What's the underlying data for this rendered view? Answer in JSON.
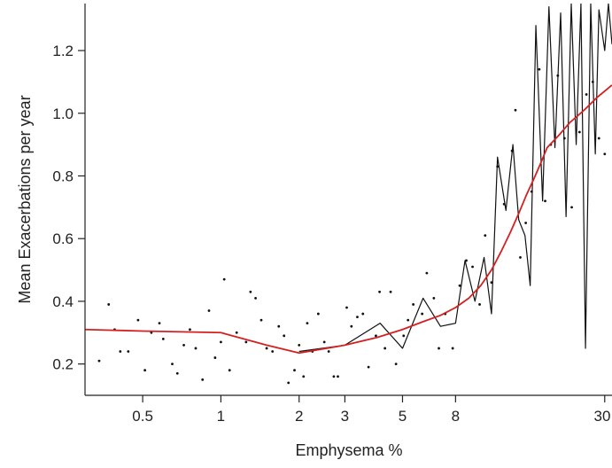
{
  "chart_data": {
    "type": "scatter",
    "title": "",
    "xlabel": "Emphysema %",
    "ylabel": "Mean Exacerbations per year",
    "x_scale": "log",
    "xlim": [
      0.3,
      32
    ],
    "ylim": [
      0.1,
      1.35
    ],
    "grid": false,
    "legend": "none",
    "x_ticks": [
      {
        "value": 0.5,
        "label": "0.5"
      },
      {
        "value": 1,
        "label": "1"
      },
      {
        "value": 2,
        "label": "2"
      },
      {
        "value": 3,
        "label": "3"
      },
      {
        "value": 5,
        "label": "5"
      },
      {
        "value": 8,
        "label": "8"
      },
      {
        "value": 30,
        "label": "30"
      }
    ],
    "y_ticks": [
      {
        "value": 0.2,
        "label": "0.2"
      },
      {
        "value": 0.4,
        "label": "0.4"
      },
      {
        "value": 0.6,
        "label": "0.6"
      },
      {
        "value": 0.8,
        "label": "0.8"
      },
      {
        "value": 1.0,
        "label": "1.0"
      },
      {
        "value": 1.2,
        "label": "1.2"
      }
    ],
    "series": [
      {
        "kind": "points",
        "color": "#111111",
        "points": [
          [
            0.34,
            0.21
          ],
          [
            0.37,
            0.39
          ],
          [
            0.39,
            0.31
          ],
          [
            0.41,
            0.24
          ],
          [
            0.44,
            0.24
          ],
          [
            0.48,
            0.34
          ],
          [
            0.51,
            0.18
          ],
          [
            0.54,
            0.3
          ],
          [
            0.58,
            0.33
          ],
          [
            0.6,
            0.28
          ],
          [
            0.65,
            0.2
          ],
          [
            0.68,
            0.17
          ],
          [
            0.72,
            0.26
          ],
          [
            0.76,
            0.31
          ],
          [
            0.8,
            0.25
          ],
          [
            0.85,
            0.15
          ],
          [
            0.9,
            0.37
          ],
          [
            0.95,
            0.22
          ],
          [
            1.0,
            0.27
          ],
          [
            1.03,
            0.47
          ],
          [
            1.08,
            0.18
          ],
          [
            1.15,
            0.3
          ],
          [
            1.25,
            0.27
          ],
          [
            1.3,
            0.43
          ],
          [
            1.36,
            0.41
          ],
          [
            1.43,
            0.34
          ],
          [
            1.5,
            0.25
          ],
          [
            1.58,
            0.24
          ],
          [
            1.67,
            0.32
          ],
          [
            1.75,
            0.29
          ],
          [
            1.82,
            0.14
          ],
          [
            1.92,
            0.18
          ],
          [
            2.0,
            0.26
          ],
          [
            2.08,
            0.16
          ],
          [
            2.15,
            0.33
          ],
          [
            2.25,
            0.24
          ],
          [
            2.37,
            0.36
          ],
          [
            2.5,
            0.27
          ],
          [
            2.6,
            0.24
          ],
          [
            2.72,
            0.16
          ],
          [
            2.82,
            0.16
          ],
          [
            3.05,
            0.38
          ],
          [
            3.18,
            0.32
          ],
          [
            3.35,
            0.35
          ],
          [
            3.52,
            0.36
          ],
          [
            3.7,
            0.19
          ],
          [
            3.95,
            0.29
          ],
          [
            4.08,
            0.43
          ],
          [
            4.28,
            0.25
          ],
          [
            4.5,
            0.43
          ],
          [
            4.72,
            0.2
          ],
          [
            5.05,
            0.29
          ],
          [
            5.25,
            0.34
          ],
          [
            5.5,
            0.39
          ],
          [
            5.95,
            0.36
          ],
          [
            6.2,
            0.49
          ],
          [
            6.6,
            0.41
          ],
          [
            6.9,
            0.25
          ],
          [
            7.3,
            0.36
          ],
          [
            7.8,
            0.25
          ],
          [
            8.3,
            0.45
          ],
          [
            8.8,
            0.53
          ],
          [
            9.3,
            0.51
          ],
          [
            9.9,
            0.39
          ],
          [
            10.4,
            0.61
          ],
          [
            11.0,
            0.46
          ],
          [
            11.6,
            0.83
          ],
          [
            12.3,
            0.71
          ],
          [
            13.2,
            0.88
          ],
          [
            13.6,
            1.01
          ],
          [
            14.2,
            0.54
          ],
          [
            14.9,
            0.65
          ],
          [
            15.7,
            0.75
          ],
          [
            16.8,
            1.14
          ],
          [
            17.7,
            0.72
          ],
          [
            18.6,
            0.9
          ],
          [
            19.8,
            1.12
          ],
          [
            21.0,
            0.92
          ],
          [
            22.4,
            0.7
          ],
          [
            24.0,
            0.94
          ],
          [
            25.5,
            1.06
          ],
          [
            27.0,
            1.1
          ],
          [
            28.5,
            0.92
          ],
          [
            30.0,
            0.87
          ]
        ]
      },
      {
        "kind": "line",
        "color": "#111111",
        "points": [
          [
            2.0,
            0.24
          ],
          [
            3.0,
            0.26
          ],
          [
            4.1,
            0.33
          ],
          [
            5.0,
            0.25
          ],
          [
            6.0,
            0.41
          ],
          [
            7.0,
            0.32
          ],
          [
            8.0,
            0.33
          ],
          [
            8.7,
            0.53
          ],
          [
            9.5,
            0.4
          ],
          [
            10.3,
            0.54
          ],
          [
            11.0,
            0.36
          ],
          [
            11.6,
            0.86
          ],
          [
            12.5,
            0.69
          ],
          [
            13.3,
            0.9
          ],
          [
            14.0,
            0.66
          ],
          [
            14.8,
            0.61
          ],
          [
            15.5,
            0.45
          ],
          [
            16.3,
            1.28
          ],
          [
            17.3,
            0.72
          ],
          [
            18.3,
            1.34
          ],
          [
            19.3,
            0.89
          ],
          [
            20.3,
            1.32
          ],
          [
            21.3,
            0.67
          ],
          [
            22.3,
            1.35
          ],
          [
            23.3,
            0.9
          ],
          [
            24.3,
            1.35
          ],
          [
            25.3,
            0.25
          ],
          [
            26.5,
            1.35
          ],
          [
            27.6,
            0.87
          ],
          [
            28.5,
            1.33
          ],
          [
            30.0,
            1.2
          ],
          [
            31.0,
            1.35
          ],
          [
            32.0,
            1.22
          ]
        ]
      },
      {
        "kind": "line",
        "color": "#d42020",
        "points": [
          [
            0.3,
            0.31
          ],
          [
            0.5,
            0.305
          ],
          [
            1.0,
            0.3
          ],
          [
            1.5,
            0.26
          ],
          [
            2.0,
            0.235
          ],
          [
            3.0,
            0.26
          ],
          [
            4.0,
            0.285
          ],
          [
            5.0,
            0.31
          ],
          [
            6.0,
            0.335
          ],
          [
            7.0,
            0.355
          ],
          [
            8.0,
            0.38
          ],
          [
            9.0,
            0.41
          ],
          [
            10.0,
            0.45
          ],
          [
            11.0,
            0.5
          ],
          [
            12.0,
            0.56
          ],
          [
            13.0,
            0.62
          ],
          [
            14.0,
            0.68
          ],
          [
            15.0,
            0.74
          ],
          [
            16.0,
            0.79
          ],
          [
            17.0,
            0.84
          ],
          [
            18.0,
            0.89
          ],
          [
            20.0,
            0.93
          ],
          [
            22.0,
            0.97
          ],
          [
            25.0,
            1.01
          ],
          [
            28.0,
            1.05
          ],
          [
            32.0,
            1.09
          ]
        ]
      }
    ]
  }
}
